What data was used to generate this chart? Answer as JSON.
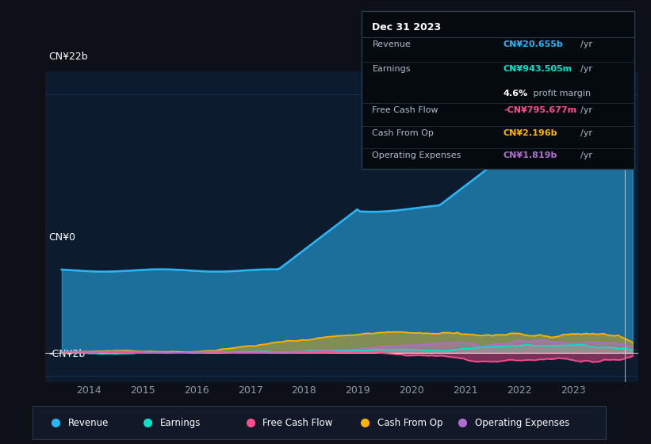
{
  "bg_color": "#0d1117",
  "plot_bg_color": "#0d1b2e",
  "grid_color": "#1e3a5f",
  "title_label": "CN¥22b",
  "zero_label": "CN¥0",
  "neg_label": "-CN¥2b",
  "x_ticks": [
    2014,
    2015,
    2016,
    2017,
    2018,
    2019,
    2020,
    2021,
    2022,
    2023
  ],
  "ylim": [
    -2.5,
    24
  ],
  "xlim": [
    2013.2,
    2024.2
  ],
  "revenue_color": "#29b6f6",
  "earnings_color": "#00e5cc",
  "fcf_color": "#ff4d8d",
  "cashop_color": "#ffb300",
  "opex_color": "#b06fcc",
  "tooltip_bg": "#050a0f",
  "tooltip_border": "#2a3a4a",
  "revenue_fill_alpha": 0.55,
  "other_fill_alpha": 0.45,
  "tooltip": {
    "date": "Dec 31 2023",
    "revenue_label": "Revenue",
    "revenue_val": "CN¥20.655b",
    "revenue_color": "#29b6f6",
    "earnings_label": "Earnings",
    "earnings_val": "CN¥943.505m",
    "earnings_color": "#00e5cc",
    "margin_val": "4.6%",
    "margin_text": " profit margin",
    "fcf_label": "Free Cash Flow",
    "fcf_val": "-CN¥795.677m",
    "fcf_color": "#ff4d8d",
    "cashop_label": "Cash From Op",
    "cashop_val": "CN¥2.196b",
    "cashop_color": "#ffb300",
    "opex_label": "Operating Expenses",
    "opex_val": "CN¥1.819b",
    "opex_color": "#b06fcc"
  }
}
